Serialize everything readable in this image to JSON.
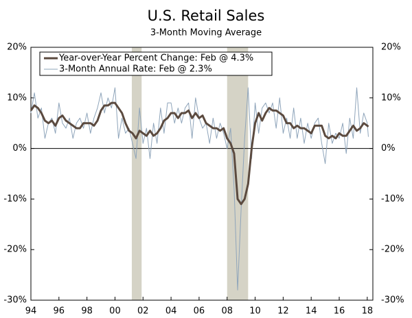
{
  "chart_data": {
    "type": "line",
    "title": "U.S. Retail Sales",
    "subtitle": "3-Month Moving Average",
    "x": [
      1994,
      1994.25,
      1994.5,
      1994.75,
      1995,
      1995.25,
      1995.5,
      1995.75,
      1996,
      1996.25,
      1996.5,
      1996.75,
      1997,
      1997.25,
      1997.5,
      1997.75,
      1998,
      1998.25,
      1998.5,
      1998.75,
      1999,
      1999.25,
      1999.5,
      1999.75,
      2000,
      2000.25,
      2000.5,
      2000.75,
      2001,
      2001.25,
      2001.5,
      2001.75,
      2002,
      2002.25,
      2002.5,
      2002.75,
      2003,
      2003.25,
      2003.5,
      2003.75,
      2004,
      2004.25,
      2004.5,
      2004.75,
      2005,
      2005.25,
      2005.5,
      2005.75,
      2006,
      2006.25,
      2006.5,
      2006.75,
      2007,
      2007.25,
      2007.5,
      2007.75,
      2008,
      2008.25,
      2008.5,
      2008.75,
      2009,
      2009.25,
      2009.5,
      2009.75,
      2010,
      2010.25,
      2010.5,
      2010.75,
      2011,
      2011.25,
      2011.5,
      2011.75,
      2012,
      2012.25,
      2012.5,
      2012.75,
      2013,
      2013.25,
      2013.5,
      2013.75,
      2014,
      2014.25,
      2014.5,
      2014.75,
      2015,
      2015.25,
      2015.5,
      2015.75,
      2016,
      2016.25,
      2016.5,
      2016.75,
      2017,
      2017.25,
      2017.5,
      2017.75,
      2018,
      2018.08
    ],
    "series": [
      {
        "name": "3-Month Annual Rate: Feb @ 2.3%",
        "color": "#8ea4ba",
        "width": 1,
        "values": [
          7,
          11,
          6,
          8,
          2,
          5,
          6,
          3,
          9,
          5,
          4,
          6,
          2,
          5,
          6,
          4,
          7,
          3,
          6,
          8,
          11,
          7,
          10,
          8,
          12,
          2,
          6,
          3,
          4,
          1,
          -2,
          8,
          1,
          4,
          -2,
          5,
          1,
          8,
          3,
          9,
          9,
          5,
          8,
          5,
          8,
          9,
          2,
          10,
          6,
          4,
          5,
          1,
          6,
          2,
          5,
          3,
          0,
          4,
          -8,
          -28,
          -12,
          2,
          12,
          -2,
          9,
          3,
          8,
          9,
          7,
          9,
          4,
          10,
          3,
          6,
          2,
          8,
          2,
          6,
          1,
          5,
          2,
          5,
          6,
          1,
          -3,
          5,
          1,
          3,
          2,
          5,
          -1,
          6,
          2,
          12,
          3,
          7,
          5,
          2.3
        ]
      },
      {
        "name": "Year-over-Year Percent Change: Feb @ 4.3%",
        "color": "#5b4a3f",
        "width": 3,
        "values": [
          7.5,
          8.5,
          8,
          7,
          5.5,
          5,
          5.5,
          4.5,
          6,
          6.5,
          5.5,
          5,
          4.5,
          4,
          4,
          5,
          5,
          5,
          4.5,
          5.5,
          7.5,
          8.5,
          8.5,
          9,
          9,
          8,
          7,
          5,
          3.5,
          3,
          2,
          3.5,
          3,
          2.5,
          3.5,
          2.5,
          3,
          4,
          5.5,
          6,
          7,
          7,
          6,
          7,
          7,
          7.5,
          6,
          7,
          6,
          6.5,
          5,
          4.5,
          4,
          4,
          3.5,
          4,
          2,
          1,
          -1,
          -10,
          -11,
          -10,
          -7,
          0,
          5,
          7,
          5.5,
          7,
          8,
          7.5,
          7.5,
          7,
          6.5,
          5,
          5,
          4,
          4.5,
          4,
          4,
          3.5,
          3,
          4.5,
          4.5,
          4.5,
          2.5,
          2,
          2.5,
          2,
          3,
          2.5,
          2.5,
          3.5,
          4.5,
          3.5,
          4,
          5,
          4.5,
          4.3
        ]
      }
    ],
    "recessions": [
      [
        2001.2,
        2001.9
      ],
      [
        2008,
        2009.5
      ]
    ],
    "xlim": [
      1994,
      2018.4
    ],
    "xticks": [
      {
        "value": 1994,
        "label": "94"
      },
      {
        "value": 1996,
        "label": "96"
      },
      {
        "value": 1998,
        "label": "98"
      },
      {
        "value": 2000,
        "label": "00"
      },
      {
        "value": 2002,
        "label": "02"
      },
      {
        "value": 2004,
        "label": "04"
      },
      {
        "value": 2006,
        "label": "06"
      },
      {
        "value": 2008,
        "label": "08"
      },
      {
        "value": 2010,
        "label": "10"
      },
      {
        "value": 2012,
        "label": "12"
      },
      {
        "value": 2014,
        "label": "14"
      },
      {
        "value": 2016,
        "label": "16"
      },
      {
        "value": 2018,
        "label": "18"
      }
    ],
    "ylim": [
      -30,
      20
    ],
    "yticks": [
      {
        "value": -30,
        "label": "-30%"
      },
      {
        "value": -20,
        "label": "-20%"
      },
      {
        "value": -10,
        "label": "-10%"
      },
      {
        "value": 0,
        "label": "0%"
      },
      {
        "value": 10,
        "label": "10%"
      },
      {
        "value": 20,
        "label": "20%"
      }
    ],
    "y2lim": [
      -30,
      20
    ],
    "y2ticks": [
      {
        "value": -30,
        "label": "-30%"
      },
      {
        "value": -20,
        "label": "-20%"
      },
      {
        "value": -10,
        "label": "-10%"
      },
      {
        "value": 0,
        "label": "0%"
      },
      {
        "value": 10,
        "label": "10%"
      },
      {
        "value": 20,
        "label": "20%"
      }
    ]
  }
}
